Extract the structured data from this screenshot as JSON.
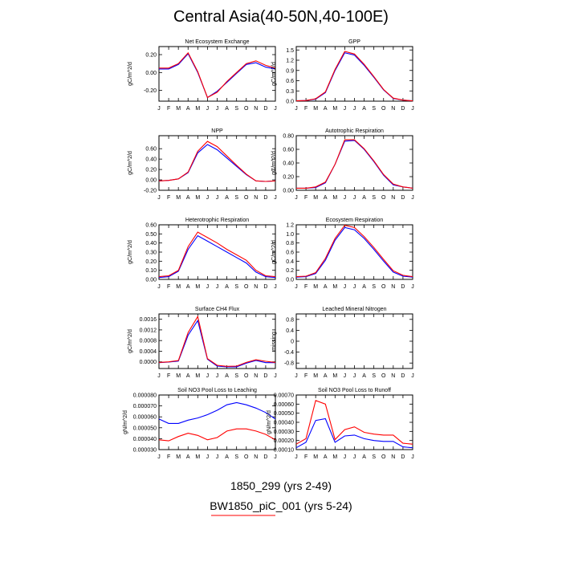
{
  "page": {
    "title": "Central Asia(40-50N,40-100E)"
  },
  "legend": [
    {
      "label": "1850_299 (yrs 2-49)",
      "color": "#0000ff"
    },
    {
      "label": "BW1850_piC_001 (yrs 5-24)",
      "color": "#ff0000"
    }
  ],
  "months": [
    "J",
    "F",
    "M",
    "A",
    "M",
    "J",
    "J",
    "A",
    "S",
    "O",
    "N",
    "D",
    "J"
  ],
  "chart_data": [
    {
      "type": "line",
      "title": "Net Ecosystem Exchange",
      "ylabel": "gC/m^2/d",
      "ylim": [
        -0.32,
        0.29
      ],
      "yticks": [
        -0.2,
        0.0,
        0.2
      ],
      "ytick_labels": [
        "-0.20",
        "0.00",
        "0.20"
      ],
      "series": [
        {
          "values": [
            0.04,
            0.04,
            0.09,
            0.21,
            0.0,
            -0.28,
            -0.21,
            -0.11,
            -0.01,
            0.09,
            0.11,
            0.06,
            0.04
          ]
        },
        {
          "values": [
            0.05,
            0.05,
            0.1,
            0.22,
            0.01,
            -0.28,
            -0.22,
            -0.1,
            0.0,
            0.1,
            0.13,
            0.08,
            0.05
          ]
        }
      ]
    },
    {
      "type": "line",
      "title": "GPP",
      "ylabel": "gC/m^2/d",
      "ylim": [
        0,
        1.6
      ],
      "yticks": [
        0,
        0.3,
        0.6,
        0.9,
        1.2,
        1.5
      ],
      "ytick_labels": [
        "0.0",
        "0.3",
        "0.6",
        "0.9",
        "1.2",
        "1.5"
      ],
      "series": [
        {
          "values": [
            0.01,
            0.02,
            0.06,
            0.25,
            0.9,
            1.42,
            1.35,
            1.05,
            0.7,
            0.33,
            0.08,
            0.03,
            0.01
          ]
        },
        {
          "values": [
            0.01,
            0.02,
            0.07,
            0.27,
            0.93,
            1.46,
            1.38,
            1.08,
            0.72,
            0.34,
            0.09,
            0.03,
            0.01
          ]
        }
      ]
    },
    {
      "type": "line",
      "title": "NPP",
      "ylabel": "gC/m^2/d",
      "ylim": [
        -0.2,
        0.85
      ],
      "yticks": [
        -0.2,
        0,
        0.2,
        0.4,
        0.6
      ],
      "ytick_labels": [
        "-0.20",
        "0.00",
        "0.20",
        "0.40",
        "0.60"
      ],
      "series": [
        {
          "values": [
            -0.02,
            -0.01,
            0.02,
            0.14,
            0.52,
            0.68,
            0.58,
            0.42,
            0.26,
            0.1,
            -0.02,
            -0.03,
            -0.02
          ]
        },
        {
          "values": [
            -0.02,
            -0.01,
            0.02,
            0.15,
            0.55,
            0.74,
            0.64,
            0.46,
            0.28,
            0.11,
            -0.02,
            -0.03,
            -0.02
          ]
        }
      ]
    },
    {
      "type": "line",
      "title": "Autotrophic Respiration",
      "ylabel": "gC/m^2/d",
      "ylim": [
        0,
        0.8
      ],
      "yticks": [
        0,
        0.2,
        0.4,
        0.6,
        0.8
      ],
      "ytick_labels": [
        "0.00",
        "0.20",
        "0.40",
        "0.60",
        "0.80"
      ],
      "series": [
        {
          "values": [
            0.03,
            0.03,
            0.04,
            0.11,
            0.38,
            0.72,
            0.73,
            0.6,
            0.42,
            0.22,
            0.08,
            0.05,
            0.03
          ]
        },
        {
          "values": [
            0.03,
            0.03,
            0.05,
            0.12,
            0.38,
            0.74,
            0.74,
            0.61,
            0.43,
            0.23,
            0.09,
            0.05,
            0.03
          ]
        }
      ]
    },
    {
      "type": "line",
      "title": "Heterotrophic Respiration",
      "ylabel": "gC/m^2/d",
      "ylim": [
        0,
        0.6
      ],
      "yticks": [
        0,
        0.1,
        0.2,
        0.3,
        0.4,
        0.5,
        0.6
      ],
      "ytick_labels": [
        "0.00",
        "0.10",
        "0.20",
        "0.30",
        "0.40",
        "0.50",
        "0.60"
      ],
      "series": [
        {
          "values": [
            0.02,
            0.03,
            0.09,
            0.33,
            0.48,
            0.42,
            0.36,
            0.3,
            0.24,
            0.18,
            0.08,
            0.03,
            0.02
          ]
        },
        {
          "values": [
            0.03,
            0.04,
            0.1,
            0.36,
            0.52,
            0.46,
            0.4,
            0.33,
            0.27,
            0.21,
            0.1,
            0.04,
            0.03
          ]
        }
      ]
    },
    {
      "type": "line",
      "title": "Ecosystem Respiration",
      "ylabel": "gC/m^2/d",
      "ylim": [
        0,
        1.2
      ],
      "yticks": [
        0,
        0.2,
        0.4,
        0.6,
        0.8,
        1.0,
        1.2
      ],
      "ytick_labels": [
        "0.0",
        "0.2",
        "0.4",
        "0.6",
        "0.8",
        "1.0",
        "1.2"
      ],
      "series": [
        {
          "values": [
            0.05,
            0.06,
            0.13,
            0.42,
            0.86,
            1.14,
            1.09,
            0.9,
            0.66,
            0.4,
            0.16,
            0.07,
            0.05
          ]
        },
        {
          "values": [
            0.06,
            0.07,
            0.15,
            0.46,
            0.9,
            1.19,
            1.14,
            0.94,
            0.7,
            0.44,
            0.19,
            0.09,
            0.06
          ]
        }
      ]
    },
    {
      "type": "line",
      "title": "Surface CH4 Flux",
      "ylabel": "gC/m^2/d",
      "ylim": [
        -0.00025,
        0.0018
      ],
      "yticks": [
        0,
        0.0004,
        0.0008,
        0.0012,
        0.0016
      ],
      "ytick_labels": [
        "0.0000",
        "0.0004",
        "0.0008",
        "0.0012",
        "0.0016"
      ],
      "series": [
        {
          "values": [
            -3e-05,
            -1e-05,
            3e-05,
            0.001,
            0.00155,
            0.0001,
            -0.00016,
            -0.00019,
            -0.00019,
            -5e-05,
            5e-05,
            -3e-05,
            -3e-05
          ]
        },
        {
          "values": [
            -2e-05,
            0.0,
            5e-05,
            0.0011,
            0.0017,
            0.00012,
            -0.00013,
            -0.00017,
            -0.00016,
            -2e-05,
            8e-05,
            2e-05,
            -2e-05
          ]
        }
      ]
    },
    {
      "type": "line",
      "title": "Leached Mineral Nitrogen",
      "ylabel": "missing",
      "ylim": [
        -1,
        1
      ],
      "yticks": [
        -0.8,
        -0.4,
        0,
        0.4,
        0.8
      ],
      "ytick_labels": [
        "-0.8",
        "-0.4",
        "0",
        "0.4",
        "0.8"
      ],
      "series": []
    },
    {
      "type": "line",
      "title": "Soil NO3 Pool Loss to Leaching",
      "ylabel": "gN/m^2/d",
      "ylim": [
        3e-05,
        8e-05
      ],
      "yticks": [
        3e-05,
        4e-05,
        5e-05,
        6e-05,
        7e-05,
        8e-05
      ],
      "ytick_labels": [
        "0.000030",
        "0.000040",
        "0.000050",
        "0.000060",
        "0.000070",
        "0.000080"
      ],
      "series": [
        {
          "values": [
            5.8e-05,
            5.4e-05,
            5.4e-05,
            5.7e-05,
            5.9e-05,
            6.2e-05,
            6.6e-05,
            7.1e-05,
            7.3e-05,
            7.1e-05,
            6.8e-05,
            6.4e-05,
            5.8e-05
          ]
        },
        {
          "values": [
            3.9e-05,
            3.8e-05,
            4.2e-05,
            4.5e-05,
            4.3e-05,
            3.9e-05,
            4.1e-05,
            4.7e-05,
            4.9e-05,
            4.9e-05,
            4.7e-05,
            4.4e-05,
            3.9e-05
          ]
        }
      ]
    },
    {
      "type": "line",
      "title": "Soil NO3 Pool Loss to Runoff",
      "ylabel": "gN/m^2/d",
      "ylim": [
        0.0001,
        0.0007
      ],
      "yticks": [
        0.0001,
        0.0002,
        0.0003,
        0.0004,
        0.0005,
        0.0006,
        0.0007
      ],
      "ytick_labels": [
        "0.00010",
        "0.00020",
        "0.00030",
        "0.00040",
        "0.00050",
        "0.00060",
        "0.00070"
      ],
      "series": [
        {
          "values": [
            0.00012,
            0.00018,
            0.00042,
            0.00044,
            0.00018,
            0.00025,
            0.00026,
            0.00022,
            0.0002,
            0.00019,
            0.00019,
            0.00013,
            0.00012
          ]
        },
        {
          "values": [
            0.00016,
            0.00022,
            0.00064,
            0.0006,
            0.00021,
            0.00032,
            0.00035,
            0.00029,
            0.00027,
            0.00026,
            0.00026,
            0.00017,
            0.00016
          ]
        }
      ]
    }
  ]
}
